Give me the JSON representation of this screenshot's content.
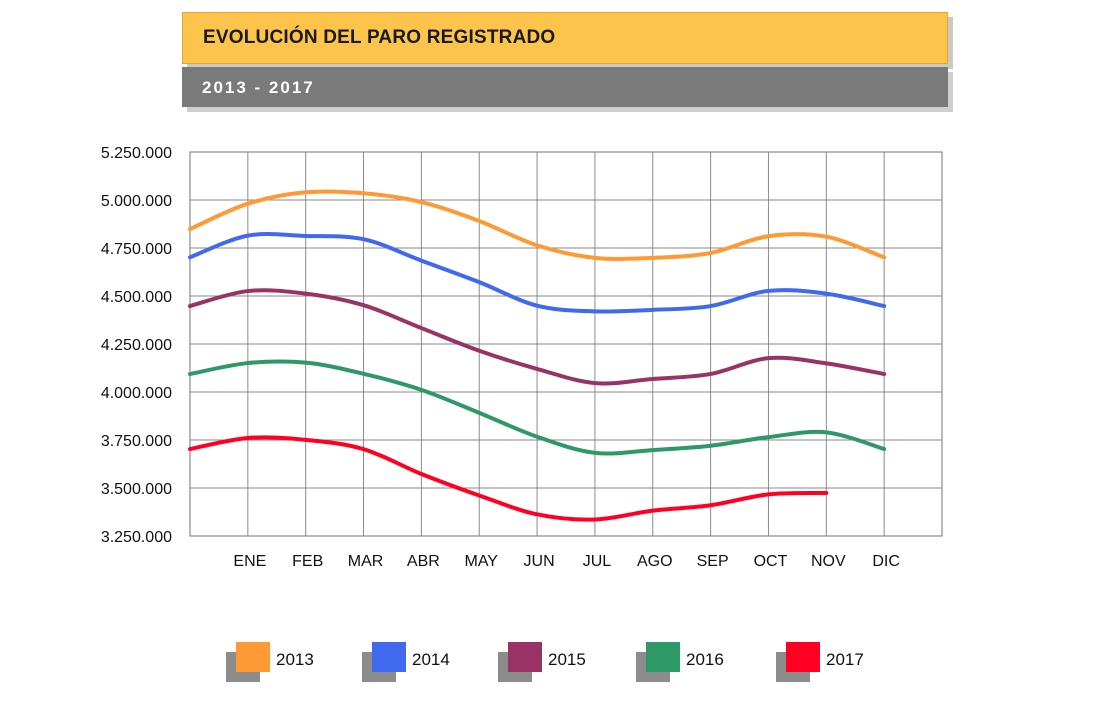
{
  "header": {
    "title": "EVOLUCIÓN DEL PARO REGISTRADO",
    "subtitle": "2013  -  2017"
  },
  "chart_data": {
    "type": "line",
    "x_categories": [
      "",
      "ENE",
      "FEB",
      "MAR",
      "ABR",
      "MAY",
      "JUN",
      "JUL",
      "AGO",
      "SEP",
      "OCT",
      "NOV",
      "DIC"
    ],
    "y_ticks": [
      "5.250.000",
      "5.000.000",
      "4.750.000",
      "4.500.000",
      "4.250.000",
      "4.000.000",
      "3.750.000",
      "3.500.000",
      "3.250.000"
    ],
    "ylim": [
      3250000,
      5250000
    ],
    "grid": true,
    "legend_position": "bottom",
    "series": [
      {
        "name": "2013",
        "color": "#ff9933",
        "values": [
          4848723,
          4980778,
          5040222,
          5035243,
          4989193,
          4890928,
          4763680,
          4698814,
          4698783,
          4724355,
          4811383,
          4808908,
          4701338
        ]
      },
      {
        "name": "2014",
        "color": "#4169f0",
        "values": [
          4701338,
          4814435,
          4812486,
          4795866,
          4684301,
          4572385,
          4449701,
          4419860,
          4427930,
          4447650,
          4526804,
          4512153,
          4447711
        ]
      },
      {
        "name": "2015",
        "color": "#993366",
        "values": [
          4447711,
          4525691,
          4512384,
          4451939,
          4333016,
          4215031,
          4120304,
          4046276,
          4067955,
          4094042,
          4176369,
          4149298,
          4093508
        ]
      },
      {
        "name": "2016",
        "color": "#2e9966",
        "values": [
          4093508,
          4150710,
          4152986,
          4094770,
          4011171,
          3891403,
          3767054,
          3683061,
          3697496,
          3720297,
          3764982,
          3789823,
          3702974
        ]
      },
      {
        "name": "2017",
        "color": "#ff0022",
        "values": [
          3702974,
          3760670,
          3750876,
          3702317,
          3573036,
          3461128,
          3362811,
          3335924,
          3382324,
          3410182,
          3467026,
          3474281,
          null
        ]
      }
    ]
  }
}
